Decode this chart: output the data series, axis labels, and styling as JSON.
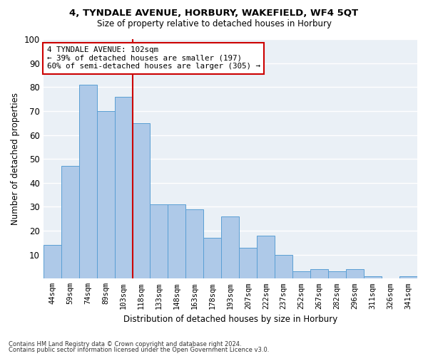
{
  "title1": "4, TYNDALE AVENUE, HORBURY, WAKEFIELD, WF4 5QT",
  "title2": "Size of property relative to detached houses in Horbury",
  "xlabel": "Distribution of detached houses by size in Horbury",
  "ylabel": "Number of detached properties",
  "categories": [
    "44sqm",
    "59sqm",
    "74sqm",
    "89sqm",
    "103sqm",
    "118sqm",
    "133sqm",
    "148sqm",
    "163sqm",
    "178sqm",
    "193sqm",
    "207sqm",
    "222sqm",
    "237sqm",
    "252sqm",
    "267sqm",
    "282sqm",
    "296sqm",
    "311sqm",
    "326sqm",
    "341sqm"
  ],
  "values": [
    14,
    47,
    81,
    70,
    76,
    65,
    31,
    31,
    29,
    17,
    26,
    13,
    18,
    10,
    3,
    4,
    3,
    4,
    1,
    0,
    1
  ],
  "bar_color": "#aec9e8",
  "bar_edge_color": "#5a9fd4",
  "vline_x_index": 4,
  "vline_color": "#cc0000",
  "annotation_title": "4 TYNDALE AVENUE: 102sqm",
  "annotation_line1": "← 39% of detached houses are smaller (197)",
  "annotation_line2": "60% of semi-detached houses are larger (305) →",
  "annotation_box_color": "#ffffff",
  "annotation_box_edge": "#cc0000",
  "ylim": [
    0,
    100
  ],
  "yticks": [
    0,
    10,
    20,
    30,
    40,
    50,
    60,
    70,
    80,
    90,
    100
  ],
  "footnote1": "Contains HM Land Registry data © Crown copyright and database right 2024.",
  "footnote2": "Contains public sector information licensed under the Open Government Licence v3.0.",
  "background_color": "#eaf0f6"
}
